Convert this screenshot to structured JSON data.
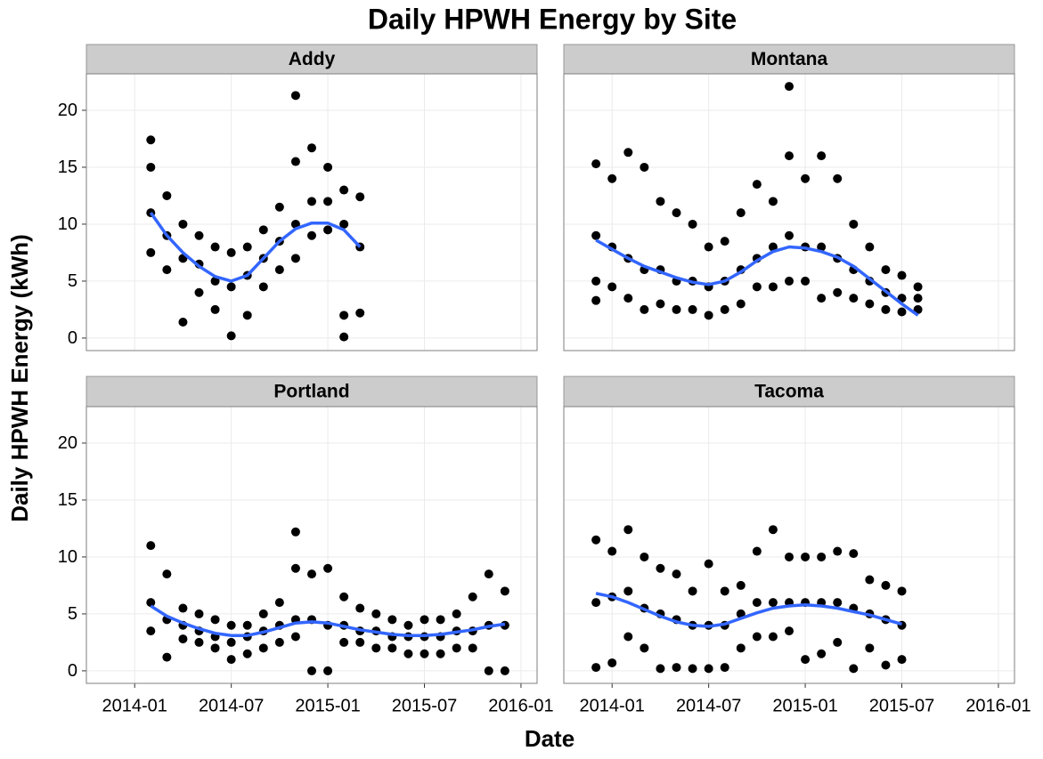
{
  "chart_data": {
    "type": "scatter",
    "title": "Daily HPWH Energy by Site",
    "xlabel": "Date",
    "ylabel": "Daily HPWH Energy (kWh)",
    "xlim": [
      "2013-10",
      "2016-02"
    ],
    "xticks": [
      "2014-01",
      "2014-07",
      "2015-01",
      "2015-07",
      "2016-01"
    ],
    "ylim": [
      -1.1,
      23.2
    ],
    "yticks": [
      0,
      5,
      10,
      15,
      20
    ],
    "grid": true,
    "point_color": "#000000",
    "smooth_color": "#3366ff",
    "facets": [
      {
        "name": "Addy",
        "points": {
          "x": [
            "2014-02",
            "2014-02",
            "2014-02",
            "2014-02",
            "2014-03",
            "2014-03",
            "2014-03",
            "2014-04",
            "2014-04",
            "2014-04",
            "2014-05",
            "2014-05",
            "2014-05",
            "2014-06",
            "2014-06",
            "2014-06",
            "2014-07",
            "2014-07",
            "2014-07",
            "2014-08",
            "2014-08",
            "2014-08",
            "2014-09",
            "2014-09",
            "2014-09",
            "2014-10",
            "2014-10",
            "2014-10",
            "2014-11",
            "2014-11",
            "2014-11",
            "2014-11",
            "2014-12",
            "2014-12",
            "2014-12",
            "2015-01",
            "2015-01",
            "2015-01",
            "2015-02",
            "2015-02",
            "2015-02",
            "2015-02",
            "2015-03",
            "2015-03",
            "2015-03"
          ],
          "values": [
            15,
            11,
            7.5,
            17.4,
            12.5,
            9,
            6,
            10,
            7,
            1.4,
            9,
            6.5,
            4,
            8,
            5,
            2.5,
            7.5,
            4.5,
            0.2,
            8,
            5.5,
            2,
            9.5,
            7,
            4.5,
            11.5,
            8.5,
            6,
            15.5,
            10,
            7,
            21.3,
            16.7,
            12,
            9,
            15,
            12,
            9.5,
            13,
            10,
            2,
            0.1,
            12.4,
            8,
            2.2
          ]
        },
        "smooth": {
          "x": [
            "2014-02",
            "2014-03",
            "2014-04",
            "2014-05",
            "2014-06",
            "2014-07",
            "2014-08",
            "2014-09",
            "2014-10",
            "2014-11",
            "2014-12",
            "2015-01",
            "2015-02",
            "2015-03"
          ],
          "values": [
            11,
            9,
            7.5,
            6.3,
            5.4,
            5,
            5.5,
            7,
            8.5,
            9.6,
            10.1,
            10.1,
            9.5,
            8
          ]
        }
      },
      {
        "name": "Montana",
        "points": {
          "x": [
            "2013-12",
            "2013-12",
            "2013-12",
            "2013-12",
            "2014-01",
            "2014-01",
            "2014-01",
            "2014-02",
            "2014-02",
            "2014-02",
            "2014-03",
            "2014-03",
            "2014-03",
            "2014-04",
            "2014-04",
            "2014-04",
            "2014-05",
            "2014-05",
            "2014-05",
            "2014-06",
            "2014-06",
            "2014-06",
            "2014-07",
            "2014-07",
            "2014-07",
            "2014-08",
            "2014-08",
            "2014-08",
            "2014-09",
            "2014-09",
            "2014-09",
            "2014-10",
            "2014-10",
            "2014-10",
            "2014-11",
            "2014-11",
            "2014-11",
            "2014-12",
            "2014-12",
            "2014-12",
            "2014-12",
            "2015-01",
            "2015-01",
            "2015-01",
            "2015-02",
            "2015-02",
            "2015-02",
            "2015-03",
            "2015-03",
            "2015-03",
            "2015-04",
            "2015-04",
            "2015-04",
            "2015-05",
            "2015-05",
            "2015-05",
            "2015-06",
            "2015-06",
            "2015-06",
            "2015-07",
            "2015-07",
            "2015-07",
            "2015-08",
            "2015-08",
            "2015-08"
          ],
          "values": [
            15.3,
            9,
            5,
            3.3,
            14,
            8,
            4.5,
            16.3,
            7,
            3.5,
            15,
            6,
            2.5,
            12,
            6,
            3,
            11,
            5,
            2.5,
            10,
            5,
            2.5,
            8,
            4.5,
            2,
            8.5,
            5,
            2.5,
            11,
            6,
            3,
            13.5,
            7,
            4.5,
            12,
            8,
            4.5,
            22.1,
            16,
            9,
            5,
            14,
            8,
            5,
            16,
            8,
            3.5,
            14,
            7,
            4,
            10,
            6,
            3.5,
            8,
            5,
            3,
            6,
            4,
            2.5,
            5.5,
            3.5,
            2.3,
            4.5,
            3.5,
            2.5
          ]
        },
        "smooth": {
          "x": [
            "2013-12",
            "2014-01",
            "2014-02",
            "2014-03",
            "2014-04",
            "2014-05",
            "2014-06",
            "2014-07",
            "2014-08",
            "2014-09",
            "2014-10",
            "2014-11",
            "2014-12",
            "2015-01",
            "2015-02",
            "2015-03",
            "2015-04",
            "2015-05",
            "2015-06",
            "2015-07",
            "2015-08"
          ],
          "values": [
            8.6,
            7.8,
            7,
            6.3,
            5.8,
            5.3,
            4.9,
            4.7,
            5,
            5.8,
            6.8,
            7.6,
            8,
            7.9,
            7.6,
            7.1,
            6.3,
            5.2,
            4.1,
            3,
            2
          ]
        }
      },
      {
        "name": "Portland",
        "points": {
          "x": [
            "2014-02",
            "2014-02",
            "2014-02",
            "2014-03",
            "2014-03",
            "2014-03",
            "2014-04",
            "2014-04",
            "2014-04",
            "2014-05",
            "2014-05",
            "2014-05",
            "2014-06",
            "2014-06",
            "2014-06",
            "2014-07",
            "2014-07",
            "2014-07",
            "2014-08",
            "2014-08",
            "2014-08",
            "2014-09",
            "2014-09",
            "2014-09",
            "2014-10",
            "2014-10",
            "2014-10",
            "2014-11",
            "2014-11",
            "2014-11",
            "2014-11",
            "2014-12",
            "2014-12",
            "2014-12",
            "2015-01",
            "2015-01",
            "2015-01",
            "2015-02",
            "2015-02",
            "2015-02",
            "2015-03",
            "2015-03",
            "2015-03",
            "2015-04",
            "2015-04",
            "2015-04",
            "2015-05",
            "2015-05",
            "2015-05",
            "2015-06",
            "2015-06",
            "2015-06",
            "2015-07",
            "2015-07",
            "2015-07",
            "2015-08",
            "2015-08",
            "2015-08",
            "2015-09",
            "2015-09",
            "2015-09",
            "2015-10",
            "2015-10",
            "2015-10",
            "2015-11",
            "2015-11",
            "2015-11",
            "2015-12",
            "2015-12",
            "2015-12"
          ],
          "values": [
            11,
            6,
            3.5,
            8.5,
            4.5,
            1.2,
            5.5,
            4,
            2.8,
            5,
            3.5,
            2.5,
            4.5,
            3,
            2,
            4,
            2.5,
            1,
            4,
            3,
            1.5,
            5,
            3.5,
            2,
            6,
            4,
            2.5,
            9,
            4.5,
            3,
            12.2,
            8.5,
            4.5,
            0,
            9,
            4,
            0,
            6.5,
            4,
            2.5,
            5.5,
            3.5,
            2.5,
            5,
            3.5,
            2,
            4.5,
            3,
            2,
            4,
            3,
            1.5,
            4.5,
            3,
            1.5,
            4.5,
            3,
            1.5,
            5,
            3.5,
            2,
            6.5,
            3.5,
            2,
            8.5,
            4,
            0,
            7,
            4,
            0
          ]
        },
        "smooth": {
          "x": [
            "2014-02",
            "2014-03",
            "2014-04",
            "2014-05",
            "2014-06",
            "2014-07",
            "2014-08",
            "2014-09",
            "2014-10",
            "2014-11",
            "2014-12",
            "2015-01",
            "2015-02",
            "2015-03",
            "2015-04",
            "2015-05",
            "2015-06",
            "2015-07",
            "2015-08",
            "2015-09",
            "2015-10",
            "2015-11",
            "2015-12"
          ],
          "values": [
            5.7,
            4.8,
            4.2,
            3.7,
            3.3,
            3.1,
            3.1,
            3.4,
            3.8,
            4.2,
            4.3,
            4.2,
            3.9,
            3.6,
            3.4,
            3.2,
            3.1,
            3.1,
            3.2,
            3.4,
            3.6,
            3.9,
            4.1
          ]
        }
      },
      {
        "name": "Tacoma",
        "points": {
          "x": [
            "2013-12",
            "2013-12",
            "2013-12",
            "2014-01",
            "2014-01",
            "2014-01",
            "2014-02",
            "2014-02",
            "2014-02",
            "2014-03",
            "2014-03",
            "2014-03",
            "2014-04",
            "2014-04",
            "2014-04",
            "2014-05",
            "2014-05",
            "2014-05",
            "2014-06",
            "2014-06",
            "2014-06",
            "2014-07",
            "2014-07",
            "2014-07",
            "2014-08",
            "2014-08",
            "2014-08",
            "2014-09",
            "2014-09",
            "2014-09",
            "2014-10",
            "2014-10",
            "2014-10",
            "2014-11",
            "2014-11",
            "2014-11",
            "2014-12",
            "2014-12",
            "2014-12",
            "2015-01",
            "2015-01",
            "2015-01",
            "2015-02",
            "2015-02",
            "2015-02",
            "2015-03",
            "2015-03",
            "2015-03",
            "2015-04",
            "2015-04",
            "2015-04",
            "2015-05",
            "2015-05",
            "2015-05",
            "2015-06",
            "2015-06",
            "2015-06",
            "2015-07",
            "2015-07",
            "2015-07"
          ],
          "values": [
            11.5,
            6,
            0.3,
            10.5,
            6.5,
            0.7,
            12.4,
            7,
            3,
            10,
            5.5,
            2,
            9,
            5,
            0.2,
            8.5,
            4.5,
            0.3,
            7,
            4,
            0.2,
            9.4,
            4,
            0.2,
            7,
            4,
            0.3,
            7.5,
            5,
            2,
            10.5,
            6,
            3,
            12.4,
            6,
            3,
            10,
            6,
            3.5,
            10,
            6,
            1,
            10,
            6,
            1.5,
            10.5,
            6,
            2.5,
            10.3,
            5.5,
            0.2,
            8,
            5,
            2,
            7.5,
            4.5,
            0.5,
            7,
            4,
            1
          ]
        },
        "smooth": {
          "x": [
            "2013-12",
            "2014-01",
            "2014-02",
            "2014-03",
            "2014-04",
            "2014-05",
            "2014-06",
            "2014-07",
            "2014-08",
            "2014-09",
            "2014-10",
            "2014-11",
            "2014-12",
            "2015-01",
            "2015-02",
            "2015-03",
            "2015-04",
            "2015-05",
            "2015-06",
            "2015-07"
          ],
          "values": [
            6.8,
            6.5,
            6,
            5.4,
            4.8,
            4.3,
            4,
            3.9,
            4.1,
            4.6,
            5.1,
            5.5,
            5.7,
            5.8,
            5.7,
            5.5,
            5.2,
            4.9,
            4.5,
            4.1
          ]
        }
      }
    ]
  }
}
